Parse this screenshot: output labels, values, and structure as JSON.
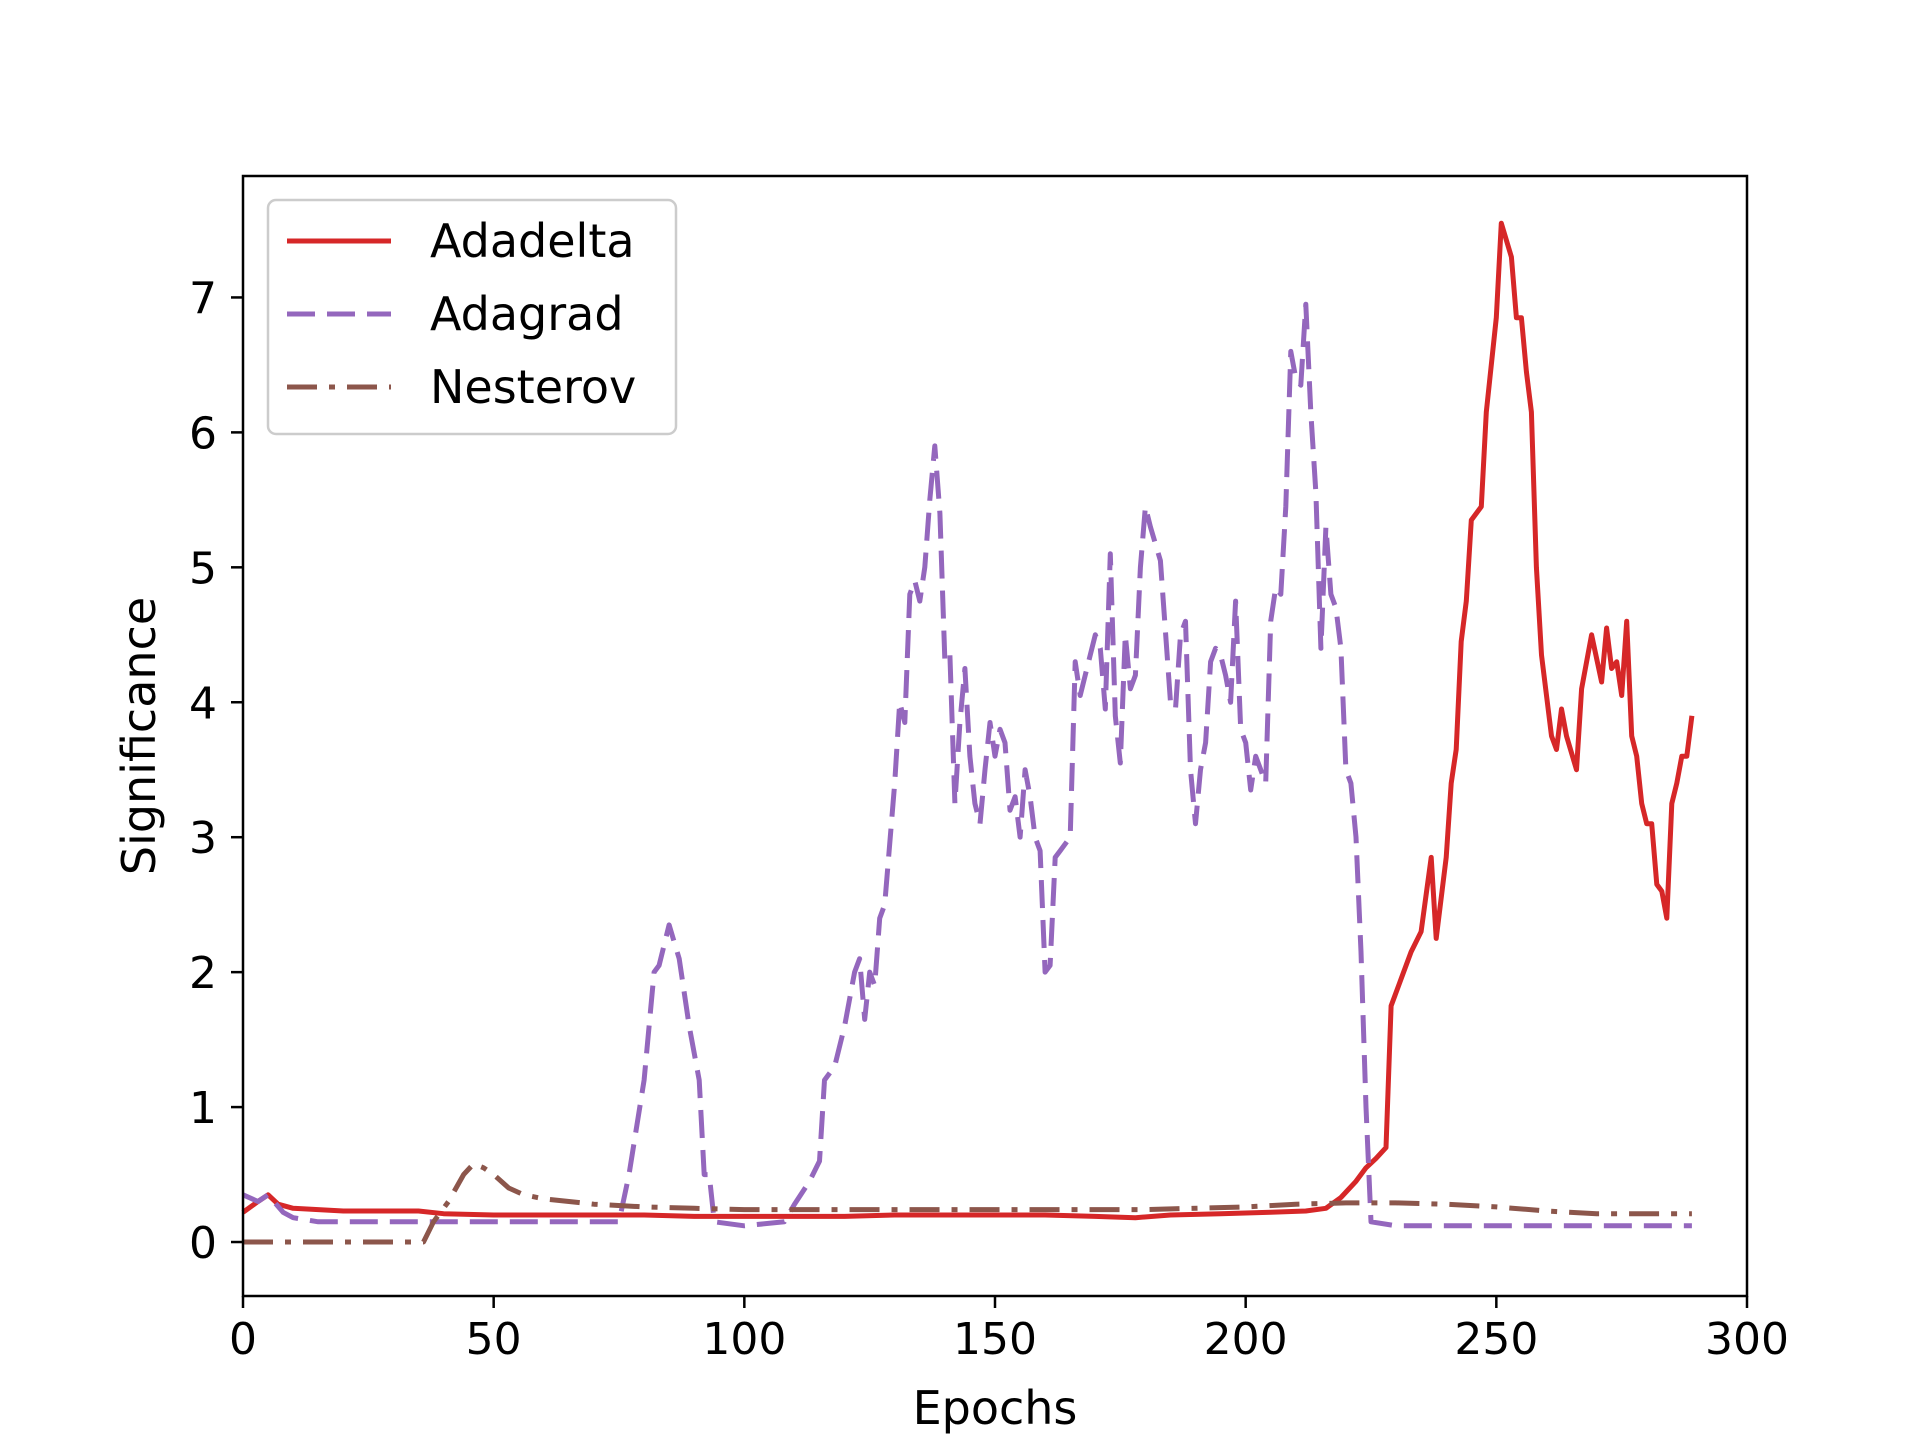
{
  "chart_data": {
    "type": "line",
    "xlabel": "Epochs",
    "ylabel": "Significance",
    "xlim": [
      0,
      300
    ],
    "ylim": [
      -0.4,
      7.9
    ],
    "xticks": [
      0,
      50,
      100,
      150,
      200,
      250,
      300
    ],
    "yticks": [
      0,
      1,
      2,
      3,
      4,
      5,
      6,
      7
    ],
    "grid": false,
    "legend_position": "top-left",
    "series": [
      {
        "name": "Adadelta",
        "color": "#d62728",
        "dash": "solid",
        "points": [
          [
            0,
            0.22
          ],
          [
            3,
            0.3
          ],
          [
            5,
            0.35
          ],
          [
            7,
            0.28
          ],
          [
            10,
            0.25
          ],
          [
            20,
            0.23
          ],
          [
            30,
            0.23
          ],
          [
            35,
            0.23
          ],
          [
            40,
            0.21
          ],
          [
            50,
            0.2
          ],
          [
            60,
            0.2
          ],
          [
            70,
            0.2
          ],
          [
            80,
            0.2
          ],
          [
            90,
            0.19
          ],
          [
            100,
            0.19
          ],
          [
            110,
            0.19
          ],
          [
            120,
            0.19
          ],
          [
            130,
            0.2
          ],
          [
            140,
            0.2
          ],
          [
            150,
            0.2
          ],
          [
            160,
            0.2
          ],
          [
            170,
            0.19
          ],
          [
            178,
            0.18
          ],
          [
            185,
            0.2
          ],
          [
            195,
            0.21
          ],
          [
            205,
            0.22
          ],
          [
            212,
            0.23
          ],
          [
            216,
            0.25
          ],
          [
            219,
            0.33
          ],
          [
            222,
            0.45
          ],
          [
            224,
            0.55
          ],
          [
            226,
            0.62
          ],
          [
            228,
            0.7
          ],
          [
            229,
            1.75
          ],
          [
            231,
            1.95
          ],
          [
            233,
            2.15
          ],
          [
            235,
            2.3
          ],
          [
            237,
            2.85
          ],
          [
            238,
            2.25
          ],
          [
            240,
            2.85
          ],
          [
            241,
            3.4
          ],
          [
            242,
            3.65
          ],
          [
            243,
            4.45
          ],
          [
            244,
            4.75
          ],
          [
            245,
            5.35
          ],
          [
            247,
            5.45
          ],
          [
            248,
            6.15
          ],
          [
            250,
            6.85
          ],
          [
            251,
            7.55
          ],
          [
            253,
            7.3
          ],
          [
            254,
            6.85
          ],
          [
            255,
            6.85
          ],
          [
            256,
            6.45
          ],
          [
            257,
            6.15
          ],
          [
            258,
            5.0
          ],
          [
            259,
            4.35
          ],
          [
            261,
            3.75
          ],
          [
            262,
            3.65
          ],
          [
            263,
            3.95
          ],
          [
            264,
            3.75
          ],
          [
            266,
            3.5
          ],
          [
            267,
            4.1
          ],
          [
            269,
            4.5
          ],
          [
            271,
            4.15
          ],
          [
            272,
            4.55
          ],
          [
            273,
            4.25
          ],
          [
            274,
            4.3
          ],
          [
            275,
            4.05
          ],
          [
            276,
            4.6
          ],
          [
            277,
            3.75
          ],
          [
            278,
            3.6
          ],
          [
            279,
            3.25
          ],
          [
            280,
            3.1
          ],
          [
            281,
            3.1
          ],
          [
            282,
            2.65
          ],
          [
            283,
            2.6
          ],
          [
            284,
            2.4
          ],
          [
            285,
            3.25
          ],
          [
            286,
            3.4
          ],
          [
            287,
            3.6
          ],
          [
            288,
            3.6
          ],
          [
            289,
            3.9
          ]
        ]
      },
      {
        "name": "Adagrad",
        "color": "#9467bd",
        "dash": "dashed",
        "points": [
          [
            0,
            0.35
          ],
          [
            3,
            0.3
          ],
          [
            5,
            0.35
          ],
          [
            8,
            0.22
          ],
          [
            10,
            0.18
          ],
          [
            15,
            0.15
          ],
          [
            30,
            0.15
          ],
          [
            50,
            0.15
          ],
          [
            70,
            0.15
          ],
          [
            75,
            0.15
          ],
          [
            77,
            0.5
          ],
          [
            80,
            1.2
          ],
          [
            82,
            2.0
          ],
          [
            83,
            2.05
          ],
          [
            85,
            2.35
          ],
          [
            87,
            2.1
          ],
          [
            89,
            1.6
          ],
          [
            91,
            1.2
          ],
          [
            92,
            0.5
          ],
          [
            93,
            0.5
          ],
          [
            94,
            0.15
          ],
          [
            100,
            0.12
          ],
          [
            108,
            0.15
          ],
          [
            110,
            0.28
          ],
          [
            113,
            0.45
          ],
          [
            115,
            0.6
          ],
          [
            116,
            1.2
          ],
          [
            118,
            1.3
          ],
          [
            120,
            1.6
          ],
          [
            122,
            2.0
          ],
          [
            123,
            2.1
          ],
          [
            124,
            1.65
          ],
          [
            125,
            2.0
          ],
          [
            126,
            1.9
          ],
          [
            127,
            2.4
          ],
          [
            128,
            2.5
          ],
          [
            130,
            3.4
          ],
          [
            131,
            4.0
          ],
          [
            132,
            3.85
          ],
          [
            133,
            4.8
          ],
          [
            134,
            4.9
          ],
          [
            135,
            4.75
          ],
          [
            136,
            5.0
          ],
          [
            137,
            5.5
          ],
          [
            138,
            5.9
          ],
          [
            139,
            5.4
          ],
          [
            140,
            4.3
          ],
          [
            141,
            4.35
          ],
          [
            142,
            3.25
          ],
          [
            143,
            3.85
          ],
          [
            144,
            4.25
          ],
          [
            145,
            3.6
          ],
          [
            146,
            3.25
          ],
          [
            147,
            3.1
          ],
          [
            148,
            3.5
          ],
          [
            149,
            3.85
          ],
          [
            150,
            3.6
          ],
          [
            151,
            3.8
          ],
          [
            152,
            3.7
          ],
          [
            153,
            3.2
          ],
          [
            154,
            3.3
          ],
          [
            155,
            3.0
          ],
          [
            156,
            3.5
          ],
          [
            157,
            3.3
          ],
          [
            158,
            3.0
          ],
          [
            159,
            2.9
          ],
          [
            160,
            2.0
          ],
          [
            161,
            2.05
          ],
          [
            162,
            2.85
          ],
          [
            163,
            2.9
          ],
          [
            165,
            3.0
          ],
          [
            166,
            4.3
          ],
          [
            167,
            4.05
          ],
          [
            168,
            4.2
          ],
          [
            170,
            4.5
          ],
          [
            171,
            4.4
          ],
          [
            172,
            3.95
          ],
          [
            173,
            5.1
          ],
          [
            174,
            3.9
          ],
          [
            175,
            3.55
          ],
          [
            176,
            4.5
          ],
          [
            177,
            4.1
          ],
          [
            178,
            4.2
          ],
          [
            179,
            5.0
          ],
          [
            180,
            5.45
          ],
          [
            181,
            5.3
          ],
          [
            183,
            5.05
          ],
          [
            185,
            4.0
          ],
          [
            186,
            3.95
          ],
          [
            187,
            4.5
          ],
          [
            188,
            4.6
          ],
          [
            189,
            3.5
          ],
          [
            190,
            3.1
          ],
          [
            191,
            3.5
          ],
          [
            192,
            3.7
          ],
          [
            193,
            4.3
          ],
          [
            194,
            4.4
          ],
          [
            195,
            4.35
          ],
          [
            196,
            4.2
          ],
          [
            197,
            4.0
          ],
          [
            198,
            4.75
          ],
          [
            199,
            3.8
          ],
          [
            200,
            3.7
          ],
          [
            201,
            3.35
          ],
          [
            202,
            3.6
          ],
          [
            204,
            3.4
          ],
          [
            205,
            4.6
          ],
          [
            206,
            4.85
          ],
          [
            207,
            4.8
          ],
          [
            208,
            5.45
          ],
          [
            209,
            6.6
          ],
          [
            210,
            6.4
          ],
          [
            211,
            6.35
          ],
          [
            212,
            6.95
          ],
          [
            213,
            6.15
          ],
          [
            214,
            5.55
          ],
          [
            215,
            4.4
          ],
          [
            216,
            5.3
          ],
          [
            217,
            4.8
          ],
          [
            218,
            4.7
          ],
          [
            219,
            4.4
          ],
          [
            220,
            3.5
          ],
          [
            221,
            3.4
          ],
          [
            222,
            3.0
          ],
          [
            223,
            2.15
          ],
          [
            224,
            1.0
          ],
          [
            225,
            0.15
          ],
          [
            230,
            0.12
          ],
          [
            240,
            0.12
          ],
          [
            260,
            0.12
          ],
          [
            289,
            0.12
          ]
        ]
      },
      {
        "name": "Nesterov",
        "color": "#8c564b",
        "dash": "dashdot",
        "points": [
          [
            0,
            0.0
          ],
          [
            10,
            0.0
          ],
          [
            20,
            0.0
          ],
          [
            30,
            0.0
          ],
          [
            36,
            0.0
          ],
          [
            38,
            0.15
          ],
          [
            41,
            0.3
          ],
          [
            44,
            0.5
          ],
          [
            46,
            0.58
          ],
          [
            48,
            0.55
          ],
          [
            50,
            0.5
          ],
          [
            53,
            0.4
          ],
          [
            56,
            0.35
          ],
          [
            60,
            0.32
          ],
          [
            70,
            0.28
          ],
          [
            80,
            0.26
          ],
          [
            90,
            0.25
          ],
          [
            100,
            0.24
          ],
          [
            120,
            0.24
          ],
          [
            140,
            0.24
          ],
          [
            160,
            0.24
          ],
          [
            180,
            0.24
          ],
          [
            200,
            0.26
          ],
          [
            210,
            0.28
          ],
          [
            220,
            0.29
          ],
          [
            230,
            0.29
          ],
          [
            240,
            0.28
          ],
          [
            250,
            0.26
          ],
          [
            260,
            0.23
          ],
          [
            270,
            0.21
          ],
          [
            280,
            0.21
          ],
          [
            289,
            0.21
          ]
        ]
      }
    ]
  }
}
